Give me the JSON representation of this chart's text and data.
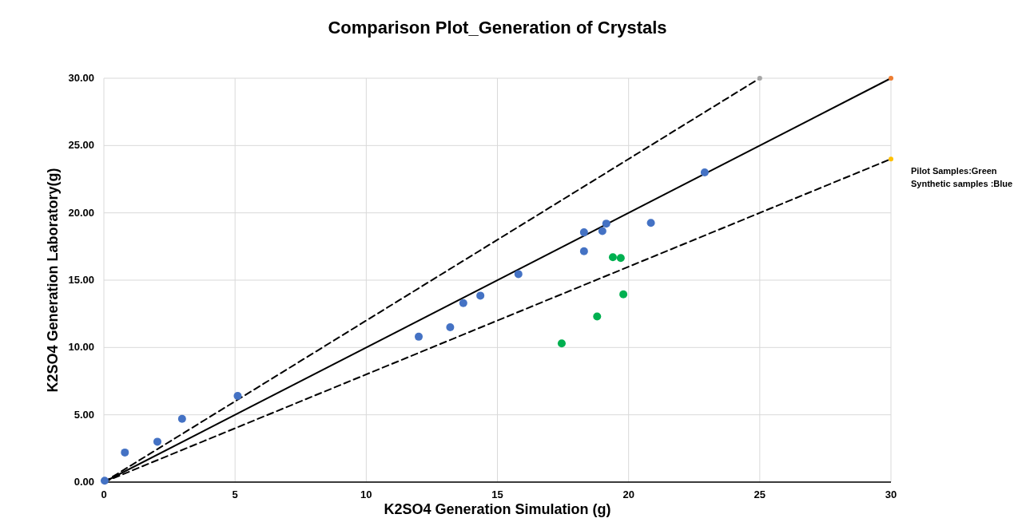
{
  "chart_data": {
    "type": "scatter",
    "title": "Comparison Plot_Generation of Crystals",
    "xlabel": "K2SO4 Generation Simulation (g)",
    "ylabel": "K2SO4 Generation Laboratory(g)",
    "xlim": [
      0,
      30
    ],
    "xticks": [
      0,
      5,
      10,
      15,
      20,
      25,
      30
    ],
    "ylim": [
      0,
      30
    ],
    "yticks": [
      {
        "value": 0,
        "label": "0.00"
      },
      {
        "value": 5,
        "label": "5.00"
      },
      {
        "value": 10,
        "label": "10.00"
      },
      {
        "value": 15,
        "label": "15.00"
      },
      {
        "value": 20,
        "label": "20.00"
      },
      {
        "value": 25,
        "label": "25.00"
      },
      {
        "value": 30,
        "label": "30.00"
      }
    ],
    "grid": true,
    "marker": "circle",
    "annotations": [
      "Pilot Samples:Green",
      "Synthetic samples :Blue"
    ],
    "series": [
      {
        "type": "line",
        "color": "#000000",
        "line_style": "dashed",
        "marker": "none",
        "x": [
          0,
          25
        ],
        "values": [
          0,
          30
        ]
      },
      {
        "type": "line",
        "color": "#000000",
        "line_style": "solid",
        "marker": "none",
        "x": [
          0,
          30
        ],
        "values": [
          0,
          30
        ]
      },
      {
        "type": "line",
        "color": "#000000",
        "line_style": "dashed",
        "marker": "none",
        "x": [
          0,
          30
        ],
        "values": [
          0,
          24
        ]
      },
      {
        "color": "#4472c4",
        "x": [
          0.03,
          0.8,
          2.04,
          2.98,
          5.1,
          12.0,
          13.2,
          13.7,
          14.35,
          15.8,
          18.3,
          18.3,
          19.0,
          19.15,
          20.85,
          22.9
        ],
        "values": [
          0.1,
          2.2,
          3.0,
          4.7,
          6.4,
          10.8,
          11.5,
          13.3,
          13.85,
          15.45,
          18.55,
          17.15,
          18.65,
          19.2,
          19.25,
          23.0
        ]
      },
      {
        "color": "#00b050",
        "x": [
          19.4,
          19.7,
          19.8,
          18.8,
          17.45
        ],
        "values": [
          16.7,
          16.65,
          13.95,
          12.3,
          10.3
        ]
      },
      {
        "type": "scatter",
        "color": "#a5a5a5",
        "x": [
          25
        ],
        "values": [
          30
        ]
      },
      {
        "type": "scatter",
        "color": "#ed7d31",
        "x": [
          30
        ],
        "values": [
          30
        ]
      },
      {
        "type": "scatter",
        "color": "#ffc000",
        "x": [
          30
        ],
        "values": [
          24
        ]
      }
    ]
  }
}
